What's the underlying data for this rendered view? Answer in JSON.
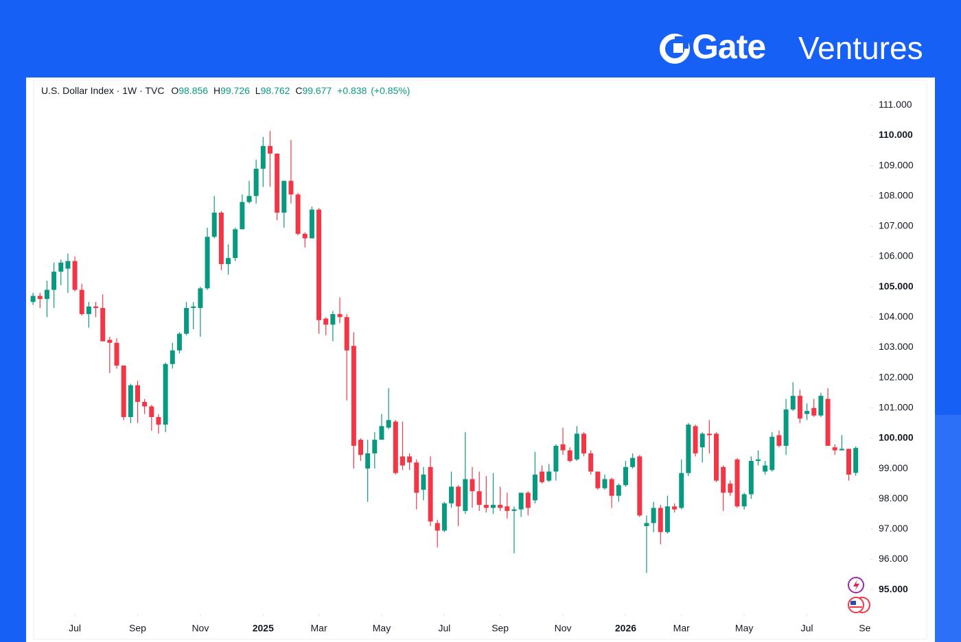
{
  "logo": {
    "brand": "Gate",
    "suffix": "Ventures"
  },
  "chart_data": {
    "type": "candlestick",
    "symbol": "U.S. Dollar Index · 1W · TVC",
    "ohlc_letters": [
      "O",
      "H",
      "L",
      "C"
    ],
    "change": "+0.838",
    "change_percent": "(+0.85%)",
    "up_color": "#089981",
    "down_color": "#f23645",
    "open": [
      104.5,
      104.7,
      104.6,
      104.9,
      105.5,
      105.6,
      105.85,
      104.9,
      104.1,
      104.35,
      104.3,
      103.25,
      103.15,
      102.4,
      100.7,
      101.75,
      101.2,
      101.05,
      100.7,
      100.45,
      102.45,
      102.9,
      103.45,
      104.3,
      104.3,
      104.95,
      106.65,
      107.45,
      105.75,
      105.95,
      106.9,
      107.8,
      108.0,
      108.9,
      109.65,
      109.4,
      107.45,
      108.5,
      108.05,
      106.75,
      106.6,
      107.55,
      103.95,
      103.75,
      104.1,
      104.0,
      103.05,
      99.95,
      99.0,
      99.5,
      99.95,
      100.35,
      100.55,
      99.4,
      99.4,
      99.2,
      98.3,
      99.05,
      97.2,
      96.95,
      97.85,
      98.4,
      97.6,
      98.65,
      98.25,
      97.8,
      97.7,
      97.8,
      97.75,
      97.6,
      97.65,
      98.2,
      97.95,
      98.9,
      98.6,
      98.9,
      99.8,
      99.6,
      99.3,
      100.15,
      99.5,
      98.9,
      98.35,
      98.65,
      98.1,
      98.45,
      99.05,
      99.4,
      97.1,
      97.2,
      97.7,
      96.9,
      97.75,
      97.7,
      98.85,
      100.4,
      99.7,
      100.15,
      100.15,
      99.05,
      98.5,
      99.3,
      97.75,
      98.15,
      99.25,
      98.9,
      98.95,
      100.1,
      99.75,
      100.95,
      101.4,
      100.8,
      101.0,
      100.75,
      101.3,
      99.7,
      99.6,
      99.65,
      98.856
    ],
    "high": [
      104.8,
      104.8,
      105.2,
      105.8,
      105.9,
      106.1,
      106.0,
      105.1,
      104.5,
      104.5,
      104.75,
      103.35,
      103.3,
      102.4,
      101.8,
      101.9,
      101.3,
      101.1,
      100.8,
      102.5,
      103.15,
      103.5,
      104.5,
      104.5,
      105.0,
      106.95,
      108.0,
      107.5,
      106.4,
      106.95,
      108.05,
      108.5,
      109.2,
      109.95,
      110.15,
      109.4,
      108.5,
      109.85,
      108.1,
      106.8,
      107.65,
      107.6,
      104.0,
      104.2,
      104.65,
      104.1,
      103.5,
      100.0,
      99.95,
      100.2,
      100.8,
      101.65,
      100.6,
      100.55,
      99.5,
      99.3,
      99.05,
      99.4,
      97.3,
      97.9,
      98.9,
      98.45,
      100.2,
      99.05,
      98.9,
      98.75,
      98.85,
      98.4,
      98.2,
      97.75,
      98.2,
      98.25,
      99.55,
      99.1,
      99.15,
      99.8,
      100.35,
      99.7,
      100.4,
      100.2,
      99.6,
      98.9,
      98.8,
      98.7,
      98.5,
      99.25,
      99.5,
      99.45,
      97.45,
      97.9,
      97.8,
      98.1,
      97.85,
      99.3,
      100.5,
      100.45,
      100.2,
      100.6,
      100.2,
      99.1,
      98.6,
      99.35,
      98.2,
      99.4,
      99.6,
      99.25,
      100.2,
      100.25,
      101.3,
      101.85,
      101.6,
      101.15,
      101.3,
      101.5,
      101.65,
      99.8,
      100.1,
      99.65,
      99.726
    ],
    "low": [
      104.4,
      104.3,
      104.0,
      104.3,
      105.05,
      104.8,
      104.85,
      104.05,
      103.65,
      104.0,
      103.2,
      102.15,
      102.3,
      100.6,
      100.5,
      100.5,
      100.8,
      100.25,
      100.15,
      100.2,
      102.3,
      102.8,
      103.4,
      103.6,
      103.35,
      104.9,
      106.6,
      105.55,
      105.4,
      105.85,
      106.9,
      107.75,
      107.75,
      108.3,
      108.3,
      107.2,
      106.95,
      107.75,
      106.7,
      106.3,
      106.6,
      103.45,
      103.4,
      103.2,
      103.8,
      101.25,
      99.0,
      99.25,
      97.9,
      99.0,
      99.95,
      100.3,
      98.8,
      98.95,
      98.95,
      97.65,
      97.95,
      97.1,
      96.4,
      96.9,
      97.7,
      97.1,
      97.5,
      97.7,
      97.6,
      97.55,
      97.5,
      97.6,
      97.35,
      96.2,
      97.4,
      97.45,
      97.85,
      98.5,
      98.55,
      98.6,
      99.45,
      99.2,
      99.25,
      99.4,
      98.8,
      98.3,
      98.3,
      97.7,
      97.9,
      98.4,
      99.0,
      97.4,
      95.55,
      96.9,
      96.5,
      96.85,
      97.55,
      97.65,
      98.75,
      99.4,
      99.2,
      99.5,
      98.55,
      97.6,
      98.1,
      97.7,
      97.65,
      98.0,
      99.1,
      98.8,
      98.9,
      99.7,
      99.45,
      100.9,
      100.5,
      100.6,
      100.7,
      100.7,
      99.75,
      99.45,
      99.6,
      98.6,
      98.762
    ],
    "close": [
      104.7,
      104.6,
      104.9,
      105.5,
      105.8,
      105.85,
      104.9,
      104.1,
      104.35,
      104.3,
      103.2,
      103.15,
      102.4,
      100.7,
      101.75,
      101.2,
      101.05,
      100.7,
      100.45,
      102.45,
      102.9,
      103.45,
      104.3,
      104.35,
      104.95,
      106.65,
      107.45,
      105.75,
      105.95,
      106.9,
      107.8,
      108.0,
      108.9,
      109.65,
      109.4,
      107.45,
      108.5,
      108.05,
      106.75,
      106.6,
      107.55,
      103.9,
      103.75,
      104.1,
      104.0,
      102.9,
      99.75,
      99.45,
      99.5,
      99.95,
      100.4,
      100.6,
      98.85,
      99.1,
      99.2,
      98.2,
      98.8,
      97.25,
      96.95,
      97.85,
      98.4,
      97.75,
      98.65,
      98.25,
      97.8,
      97.7,
      97.8,
      97.7,
      97.6,
      97.65,
      98.2,
      97.7,
      98.8,
      98.55,
      98.9,
      99.75,
      99.6,
      99.25,
      100.15,
      99.5,
      98.9,
      98.35,
      98.65,
      98.1,
      98.45,
      99.05,
      99.35,
      97.45,
      97.2,
      97.7,
      96.9,
      97.75,
      97.65,
      98.85,
      100.45,
      99.5,
      100.15,
      100.1,
      98.6,
      98.2,
      98.2,
      97.75,
      98.15,
      99.25,
      99.3,
      99.1,
      100.05,
      99.75,
      100.95,
      101.4,
      100.65,
      100.9,
      100.75,
      101.4,
      99.75,
      99.6,
      99.65,
      98.8,
      99.677
    ],
    "xlim": [
      -0.8,
      120.1
    ],
    "xticks": [
      {
        "value": 6,
        "label": "Jul"
      },
      {
        "value": 15,
        "label": "Sep"
      },
      {
        "value": 24,
        "label": "Nov"
      },
      {
        "value": 33,
        "label": "2025"
      },
      {
        "value": 41,
        "label": "Mar"
      },
      {
        "value": 50,
        "label": "May"
      },
      {
        "value": 59,
        "label": "Jul"
      },
      {
        "value": 67,
        "label": "Sep"
      },
      {
        "value": 76,
        "label": "Nov"
      },
      {
        "value": 85,
        "label": "2026"
      },
      {
        "value": 93,
        "label": "Mar"
      },
      {
        "value": 102,
        "label": "May"
      },
      {
        "value": 111,
        "label": "Jul"
      },
      {
        "value": 119.3,
        "label": "Se"
      }
    ],
    "ylim": [
      94.2,
      111.3
    ],
    "yticks": [
      {
        "value": 111,
        "label": "111.000"
      },
      {
        "value": 110,
        "label": "110.000"
      },
      {
        "value": 109,
        "label": "109.000"
      },
      {
        "value": 108,
        "label": "108.000"
      },
      {
        "value": 107,
        "label": "107.000"
      },
      {
        "value": 106,
        "label": "106.000"
      },
      {
        "value": 105,
        "label": "105.000"
      },
      {
        "value": 104,
        "label": "104.000"
      },
      {
        "value": 103,
        "label": "103.000"
      },
      {
        "value": 102,
        "label": "102.000"
      },
      {
        "value": 101,
        "label": "101.000"
      },
      {
        "value": 100,
        "label": "100.000"
      },
      {
        "value": 99,
        "label": "99.000"
      },
      {
        "value": 98,
        "label": "98.000"
      },
      {
        "value": 97,
        "label": "97.000"
      },
      {
        "value": 96,
        "label": "96.000"
      },
      {
        "value": 95,
        "label": "95.000"
      }
    ]
  }
}
